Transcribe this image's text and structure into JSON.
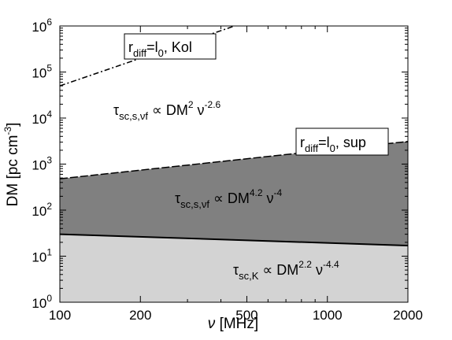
{
  "chart_data": {
    "type": "area",
    "xlabel_symbol": "ν",
    "xlabel_text": " [MHz]",
    "ylabel": "DM [pc cm",
    "ylabel_sup": "-3",
    "ylabel_close": "]",
    "x_scale": "log",
    "y_scale": "log",
    "xlim": [
      100,
      2000
    ],
    "ylim": [
      1,
      1000000
    ],
    "x_ticks": [
      {
        "value": 100,
        "label": "100"
      },
      {
        "value": 200,
        "label": "200"
      },
      {
        "value": 500,
        "label": "500"
      },
      {
        "value": 1000,
        "label": "1000"
      },
      {
        "value": 2000,
        "label": "2000"
      }
    ],
    "y_ticks": [
      {
        "value": 1,
        "base": "10",
        "exp": "0"
      },
      {
        "value": 10,
        "base": "10",
        "exp": "1"
      },
      {
        "value": 100,
        "base": "10",
        "exp": "2"
      },
      {
        "value": 1000,
        "base": "10",
        "exp": "3"
      },
      {
        "value": 10000,
        "base": "10",
        "exp": "4"
      },
      {
        "value": 100000,
        "base": "10",
        "exp": "5"
      },
      {
        "value": 1000000,
        "base": "10",
        "exp": "6"
      }
    ],
    "boundaries": {
      "lower": {
        "x": [
          100,
          2000
        ],
        "y": [
          30,
          17
        ]
      },
      "upper_sup": {
        "x": [
          100,
          2000
        ],
        "y": [
          480,
          3100
        ]
      },
      "kol": {
        "x": [
          100,
          450
        ],
        "y": [
          50000,
          1000000
        ]
      }
    },
    "colors": {
      "light_region": "#d3d3d3",
      "dark_region": "#808080",
      "line": "#000000"
    },
    "annotations": {
      "top_region": {
        "tau": "τ",
        "sub": "sc,s,νf",
        "mid": " ∝ DM",
        "exp1": "2",
        "nu": " ν",
        "exp2": "-2.6"
      },
      "mid_region": {
        "tau": "τ",
        "sub": "sc,s,νf",
        "mid": " ∝ DM",
        "exp1": "4.2",
        "nu": " ν",
        "exp2": "-4"
      },
      "bottom_region": {
        "tau": "τ",
        "sub": "sc,K",
        "mid": " ∝ DM",
        "exp1": "2.2",
        "nu": " ν",
        "exp2": "-4.4"
      }
    },
    "labels": {
      "kol": {
        "r": "r",
        "sub": "diff",
        "eq": "=l",
        "sub2": "0",
        "tail": ", Kol"
      },
      "sup": {
        "r": "r",
        "sub": "diff",
        "eq": "=l",
        "sub2": "0",
        "tail": ", sup"
      }
    }
  }
}
